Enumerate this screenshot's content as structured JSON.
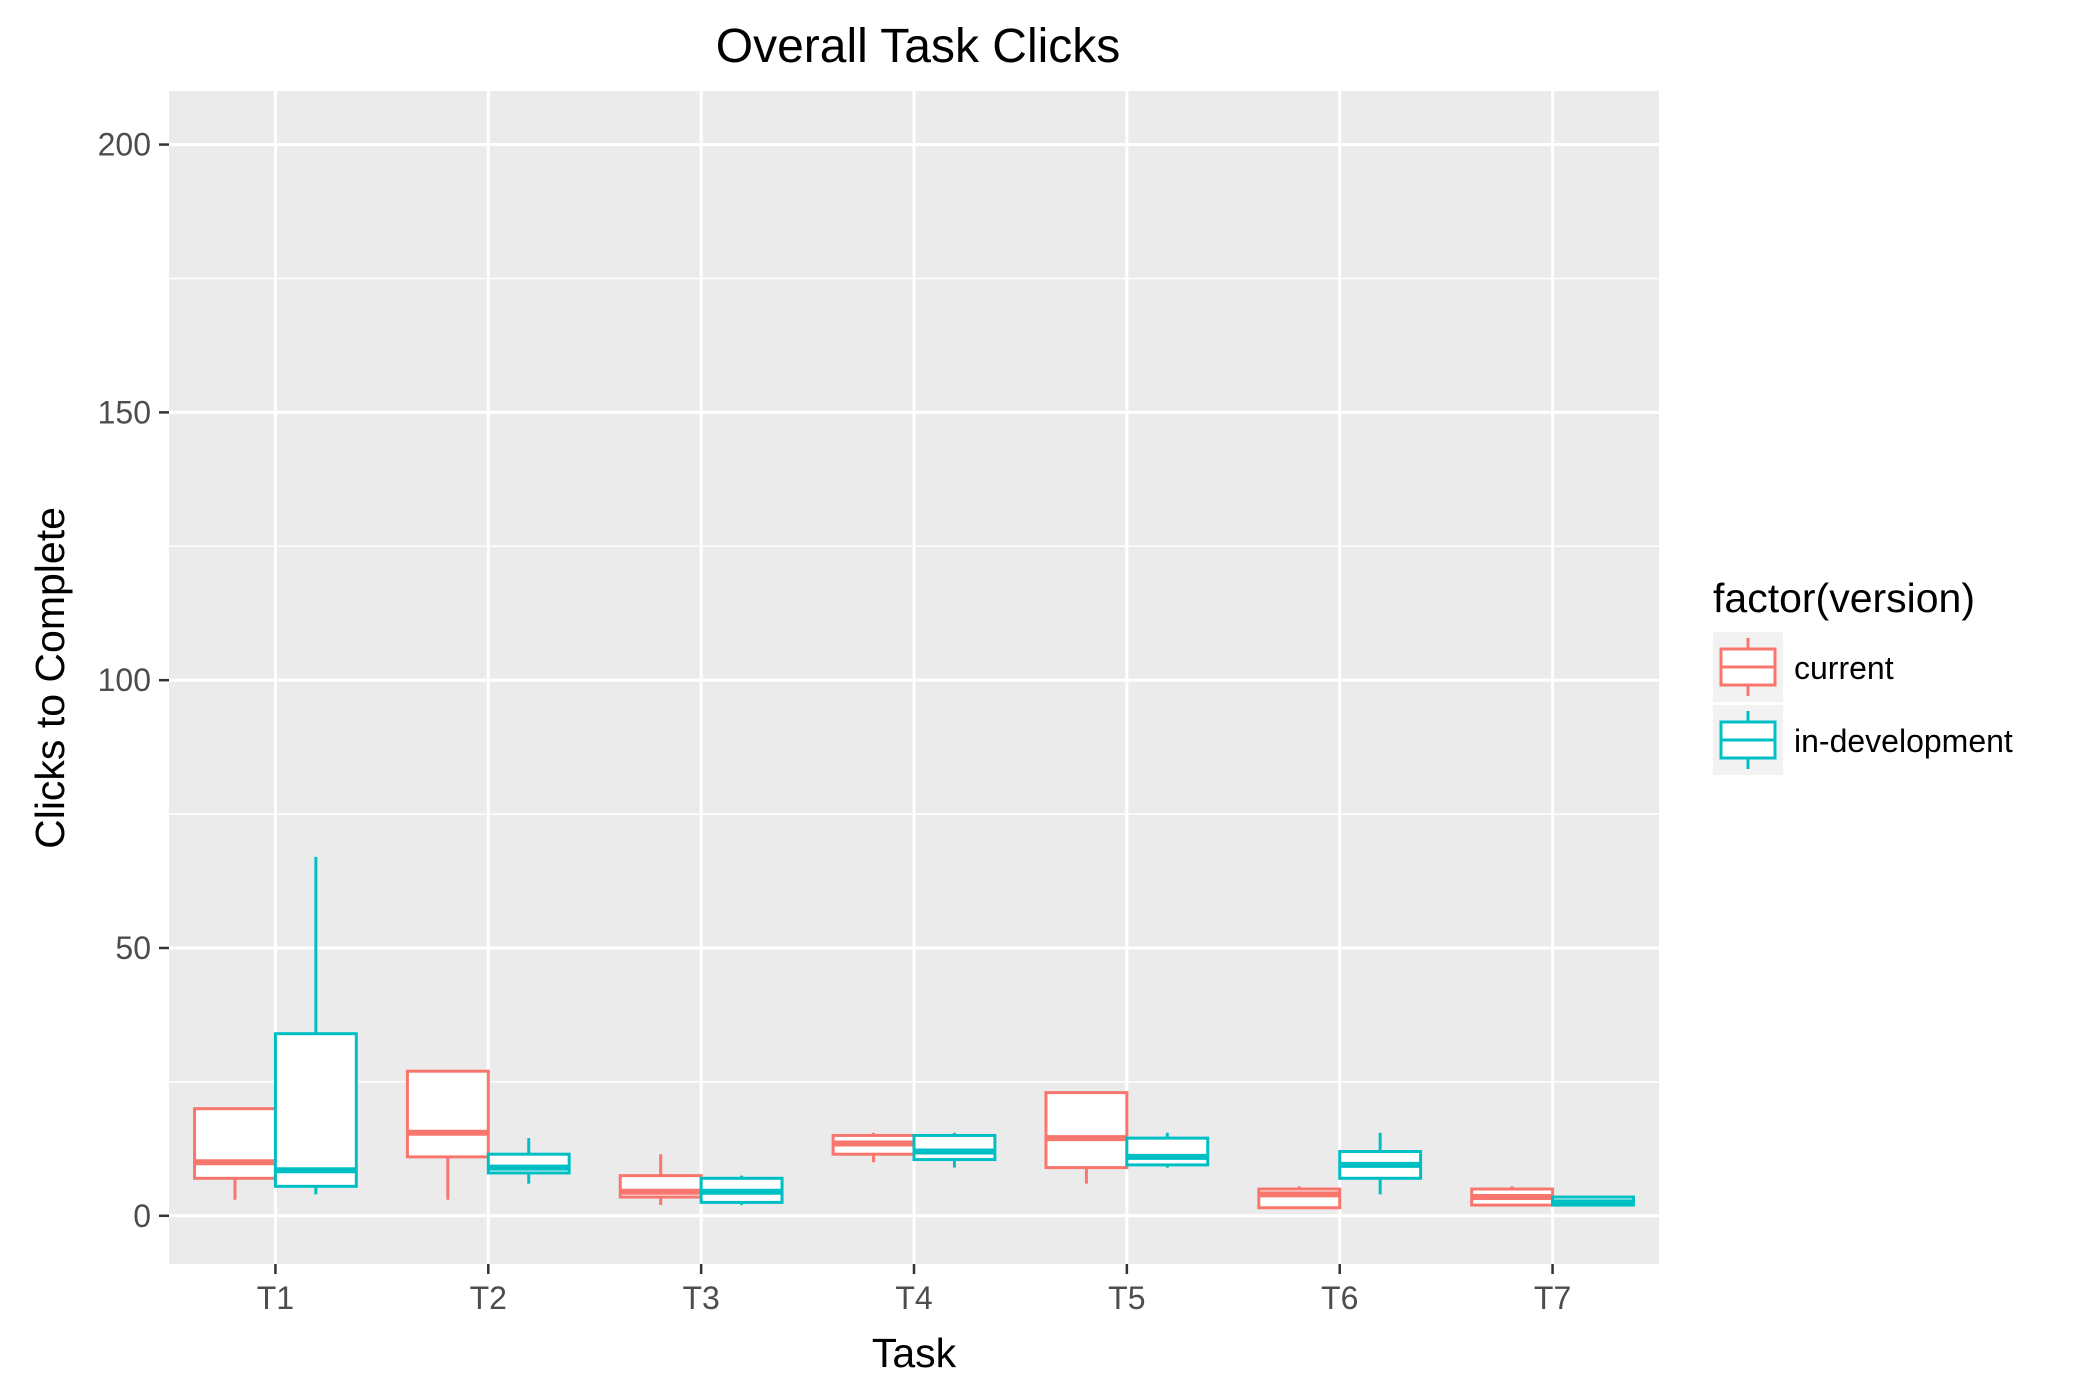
{
  "chart_data": {
    "type": "boxplot",
    "title": "Overall Task Clicks",
    "xlabel": "Task",
    "ylabel": "Clicks to Complete",
    "categories": [
      "T1",
      "T2",
      "T3",
      "T4",
      "T5",
      "T6",
      "T7"
    ],
    "ylim": [
      -9,
      210
    ],
    "yticks": [
      0,
      50,
      100,
      150,
      200
    ],
    "yticks_labels": [
      "0",
      "50",
      "100",
      "150",
      "200"
    ],
    "grid": true,
    "legend": {
      "title": "factor(version)",
      "position": "right"
    },
    "series": [
      {
        "name": "current",
        "color": "#F8766D",
        "boxes": [
          {
            "category": "T1",
            "min": 3,
            "q1": 7,
            "median": 10,
            "q3": 20,
            "max": 20
          },
          {
            "category": "T2",
            "min": 3,
            "q1": 11,
            "median": 15.5,
            "q3": 27,
            "max": 27
          },
          {
            "category": "T3",
            "min": 2,
            "q1": 3.5,
            "median": 4.5,
            "q3": 7.5,
            "max": 11.5
          },
          {
            "category": "T4",
            "min": 10,
            "q1": 11.5,
            "median": 13.5,
            "q3": 15,
            "max": 15.5
          },
          {
            "category": "T5",
            "min": 6,
            "q1": 9,
            "median": 14.5,
            "q3": 23,
            "max": 23
          },
          {
            "category": "T6",
            "min": 1.5,
            "q1": 1.5,
            "median": 4,
            "q3": 5,
            "max": 5.5
          },
          {
            "category": "T7",
            "min": 2,
            "q1": 2,
            "median": 3.5,
            "q3": 5,
            "max": 5.5
          }
        ]
      },
      {
        "name": "in-development",
        "color": "#00BFC4",
        "boxes": [
          {
            "category": "T1",
            "min": 4,
            "q1": 5.5,
            "median": 8.5,
            "q3": 34,
            "max": 67
          },
          {
            "category": "T2",
            "min": 6,
            "q1": 8,
            "median": 9,
            "q3": 11.5,
            "max": 14.5
          },
          {
            "category": "T3",
            "min": 2,
            "q1": 2.5,
            "median": 4.5,
            "q3": 7,
            "max": 7.5
          },
          {
            "category": "T4",
            "min": 9,
            "q1": 10.5,
            "median": 12,
            "q3": 15,
            "max": 15.5
          },
          {
            "category": "T5",
            "min": 9,
            "q1": 9.5,
            "median": 11,
            "q3": 14.5,
            "max": 15.5
          },
          {
            "category": "T6",
            "min": 4,
            "q1": 7,
            "median": 9.5,
            "q3": 12,
            "max": 15.5
          },
          {
            "category": "T7",
            "min": 2,
            "q1": 2,
            "median": 2.5,
            "q3": 3.5,
            "max": 3.5
          }
        ]
      }
    ]
  }
}
